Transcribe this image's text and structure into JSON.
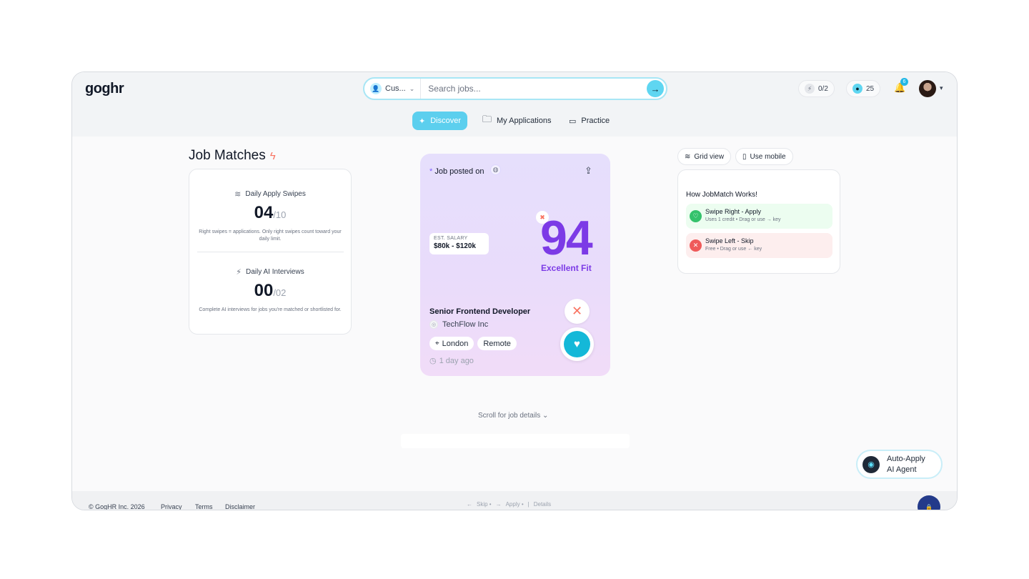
{
  "app": {
    "logo": "goghr"
  },
  "search": {
    "scope_label": "Cus...",
    "placeholder": "Search jobs..."
  },
  "header": {
    "credits": "0/2",
    "coins": "25",
    "notifications": "6"
  },
  "nav": {
    "discover": "Discover",
    "applications": "My Applications",
    "practice": "Practice"
  },
  "matches": {
    "title": "Job Matches",
    "swipes": {
      "label": "Daily Apply Swipes",
      "value": "04",
      "max": "/10",
      "desc": "Right swipes = applications. Only right swipes count toward your daily limit."
    },
    "interviews": {
      "label": "Daily AI Interviews",
      "value": "00",
      "max": "/02",
      "desc": "Complete AI interviews for jobs you're matched or shortlisted for."
    }
  },
  "job": {
    "posted_label": "Job posted on",
    "salary_label": "EST. SALARY",
    "salary": "$80k - $120k",
    "score": "94",
    "fit": "Excellent Fit",
    "role": "Senior Frontend Developer",
    "company": "TechFlow Inc",
    "location": "London",
    "work_type": "Remote",
    "posted_ago": "1 day ago"
  },
  "views": {
    "grid": "Grid view",
    "mobile": "Use mobile"
  },
  "how": {
    "title": "How JobMatch Works!",
    "right": {
      "title": "Swipe Right - Apply",
      "sub": "Uses 1 credit • Drag or use → key"
    },
    "left": {
      "title": "Swipe Left - Skip",
      "sub": "Free • Drag or use ← key"
    }
  },
  "scroll_hint": "Scroll for job details",
  "agent": {
    "line1": "Auto-Apply",
    "line2": "AI Agent"
  },
  "footer": {
    "copyright": "© GogHR Inc. 2026",
    "privacy": "Privacy",
    "terms": "Terms",
    "disclaimer": "Disclaimer",
    "hint_skip": "Skip •",
    "hint_apply": "Apply •",
    "hint_details": "Details"
  },
  "colors": {
    "accent": "#5ccfee",
    "score": "#7c3ae6",
    "like": "#14b8d8"
  }
}
